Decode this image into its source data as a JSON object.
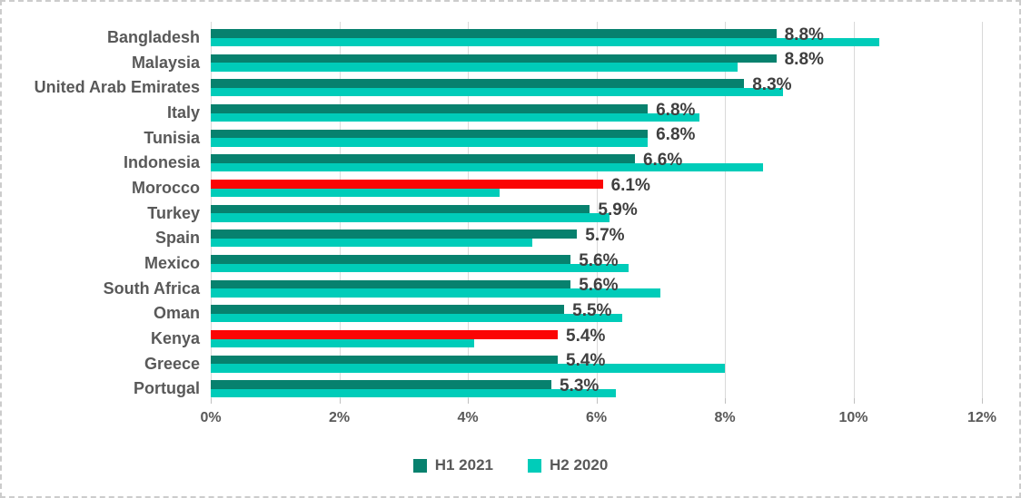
{
  "chart_data": {
    "type": "bar",
    "orientation": "horizontal",
    "title": "",
    "xlabel": "",
    "ylabel": "",
    "x_ticks": [
      "0%",
      "2%",
      "4%",
      "6%",
      "8%",
      "10%",
      "12%"
    ],
    "x_max": 12,
    "grid": true,
    "legend_position": "bottom",
    "categories": [
      "Bangladesh",
      "Malaysia",
      "United Arab Emirates",
      "Italy",
      "Tunisia",
      "Indonesia",
      "Morocco",
      "Turkey",
      "Spain",
      "Mexico",
      "South Africa",
      "Oman",
      "Kenya",
      "Greece",
      "Portugal"
    ],
    "series": [
      {
        "name": "H1 2021",
        "color": "#07816e",
        "values": [
          8.8,
          8.8,
          8.3,
          6.8,
          6.8,
          6.6,
          6.1,
          5.9,
          5.7,
          5.6,
          5.6,
          5.5,
          5.4,
          5.4,
          5.3
        ],
        "data_labels": [
          "8.8%",
          "8.8%",
          "8.3%",
          "6.8%",
          "6.8%",
          "6.6%",
          "6.1%",
          "5.9%",
          "5.7%",
          "5.6%",
          "5.6%",
          "5.5%",
          "5.4%",
          "5.4%",
          "5.3%"
        ]
      },
      {
        "name": "H2 2020",
        "color": "#00ccb9",
        "values": [
          10.4,
          8.2,
          8.9,
          7.6,
          6.8,
          8.6,
          4.5,
          6.2,
          5.0,
          6.5,
          7.0,
          6.4,
          4.1,
          8.0,
          6.3
        ]
      }
    ],
    "highlighted_categories": [
      "Morocco",
      "Kenya"
    ],
    "highlight_color": "#fb0505"
  },
  "colors": {
    "gridline": "#d9d9d9",
    "tick": "#c0c0c0",
    "category_label": "#595959",
    "data_label": "#3f3f3f",
    "axis_label": "#595959",
    "legend_text": "#595959",
    "frame_border": "#cccccc",
    "background": "#ffffff"
  }
}
